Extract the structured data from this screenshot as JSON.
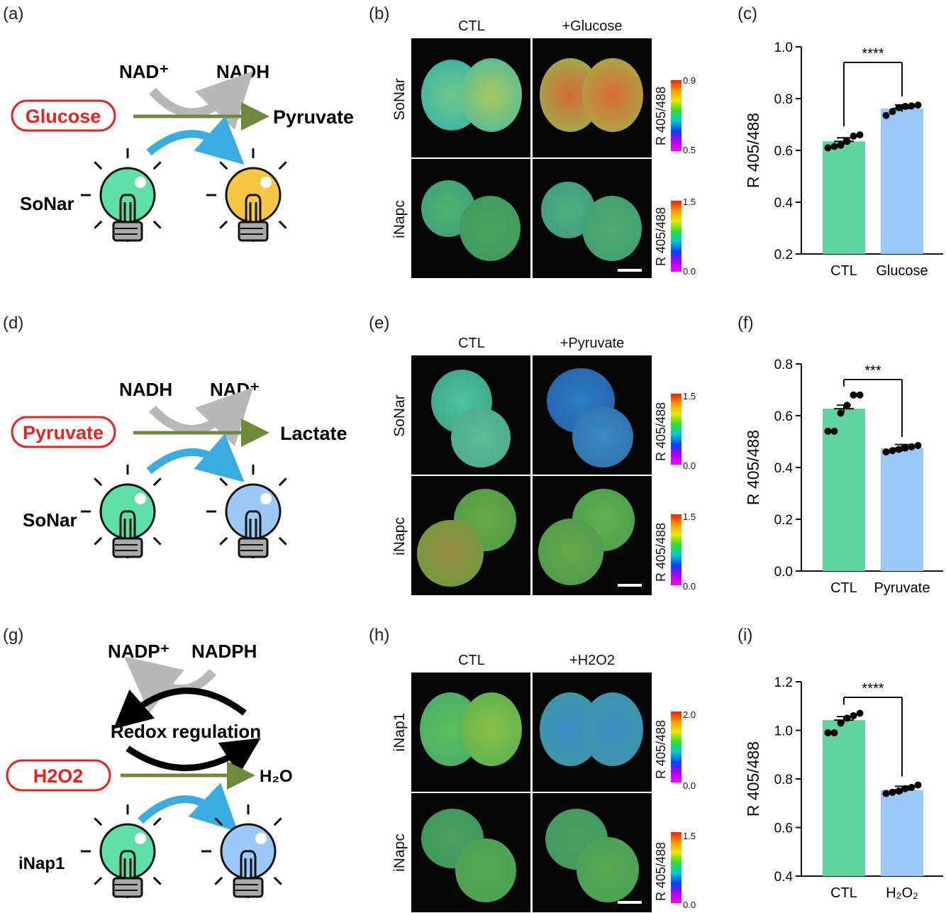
{
  "panel_labels": {
    "a": "(a)",
    "b": "(b)",
    "c": "(c)",
    "d": "(d)",
    "e": "(e)",
    "f": "(f)",
    "g": "(g)",
    "h": "(h)",
    "i": "(i)"
  },
  "schemes": [
    {
      "left_cofactor": "NAD⁺",
      "right_cofactor": "NADH",
      "substrate": "Glucose",
      "product": "Pyruvate",
      "sensor": "SoNar",
      "start_bulb": "green",
      "end_bulb": "yellow"
    },
    {
      "left_cofactor": "NADH",
      "right_cofactor": "NAD⁺",
      "substrate": "Pyruvate",
      "product": "Lactate",
      "sensor": "SoNar",
      "start_bulb": "green",
      "end_bulb": "blue"
    },
    {
      "left_cofactor": "NADP⁺",
      "right_cofactor": "NADPH",
      "middle": "Redox regulation",
      "substrate": "H2O2",
      "product": "H₂O",
      "sensor": "iNap1",
      "start_bulb": "green",
      "end_bulb": "blue"
    }
  ],
  "micrographs": [
    {
      "col_titles": [
        "CTL",
        "+Glucose"
      ],
      "rows": [
        {
          "label": "SoNar",
          "cbar_label": "R 405/488",
          "cbar_max": "0.9",
          "cbar_min": "0.5"
        },
        {
          "label": "iNapc",
          "cbar_label": "R 405/488",
          "cbar_max": "1.5",
          "cbar_min": "0.0"
        }
      ]
    },
    {
      "col_titles": [
        "CTL",
        "+Pyruvate"
      ],
      "rows": [
        {
          "label": "SoNar",
          "cbar_label": "R 405/488",
          "cbar_max": "1.5",
          "cbar_min": "0.0"
        },
        {
          "label": "iNapc",
          "cbar_label": "R 405/488",
          "cbar_max": "1.5",
          "cbar_min": "0.0"
        }
      ]
    },
    {
      "col_titles": [
        "CTL",
        "+H2O2"
      ],
      "rows": [
        {
          "label": "iNap1",
          "cbar_label": "R 405/488",
          "cbar_max": "2.0",
          "cbar_min": "0.0"
        },
        {
          "label": "iNapc",
          "cbar_label": "R 405/488",
          "cbar_max": "1.5",
          "cbar_min": "0.0"
        }
      ]
    }
  ],
  "colors": {
    "ctl_bar": "#5fd3a0",
    "treat_bar": "#9cc8f8",
    "arrow_green": "#6e8b3d",
    "arrow_blue": "#3aace0",
    "arrow_gray": "#b8b8b8",
    "highlight_red": "#e8231f"
  },
  "chart_data": [
    {
      "type": "bar",
      "categories": [
        "CTL",
        "Glucose"
      ],
      "values": [
        0.635,
        0.762
      ],
      "points": [
        [
          0.61,
          0.615,
          0.62,
          0.635,
          0.655,
          0.66
        ],
        [
          0.735,
          0.75,
          0.765,
          0.77,
          0.772,
          0.775
        ]
      ],
      "ylabel": "R 405/488",
      "ylim": [
        0.2,
        1.0
      ],
      "yticks": [
        "0.2",
        "0.4",
        "0.6",
        "0.8",
        "1.0"
      ],
      "significance": "****"
    },
    {
      "type": "bar",
      "categories": [
        "CTL",
        "Pyruvate"
      ],
      "values": [
        0.627,
        0.475
      ],
      "points": [
        [
          0.54,
          0.54,
          0.61,
          0.64,
          0.68,
          0.68
        ],
        [
          0.46,
          0.465,
          0.47,
          0.475,
          0.48,
          0.485
        ]
      ],
      "ylabel": "R 405/488",
      "ylim": [
        0.0,
        0.8
      ],
      "yticks": [
        "0.0",
        "0.2",
        "0.4",
        "0.6",
        "0.8"
      ],
      "significance": "***"
    },
    {
      "type": "bar",
      "categories": [
        "CTL",
        "H₂O₂"
      ],
      "values": [
        1.042,
        0.755
      ],
      "points": [
        [
          0.99,
          0.99,
          1.03,
          1.05,
          1.06,
          1.07
        ],
        [
          0.74,
          0.745,
          0.75,
          0.76,
          0.765,
          0.775
        ]
      ],
      "ylabel": "R 405/488",
      "ylim": [
        0.4,
        1.2
      ],
      "yticks": [
        "0.4",
        "0.6",
        "0.8",
        "1.0",
        "1.2"
      ],
      "significance": "****"
    }
  ]
}
